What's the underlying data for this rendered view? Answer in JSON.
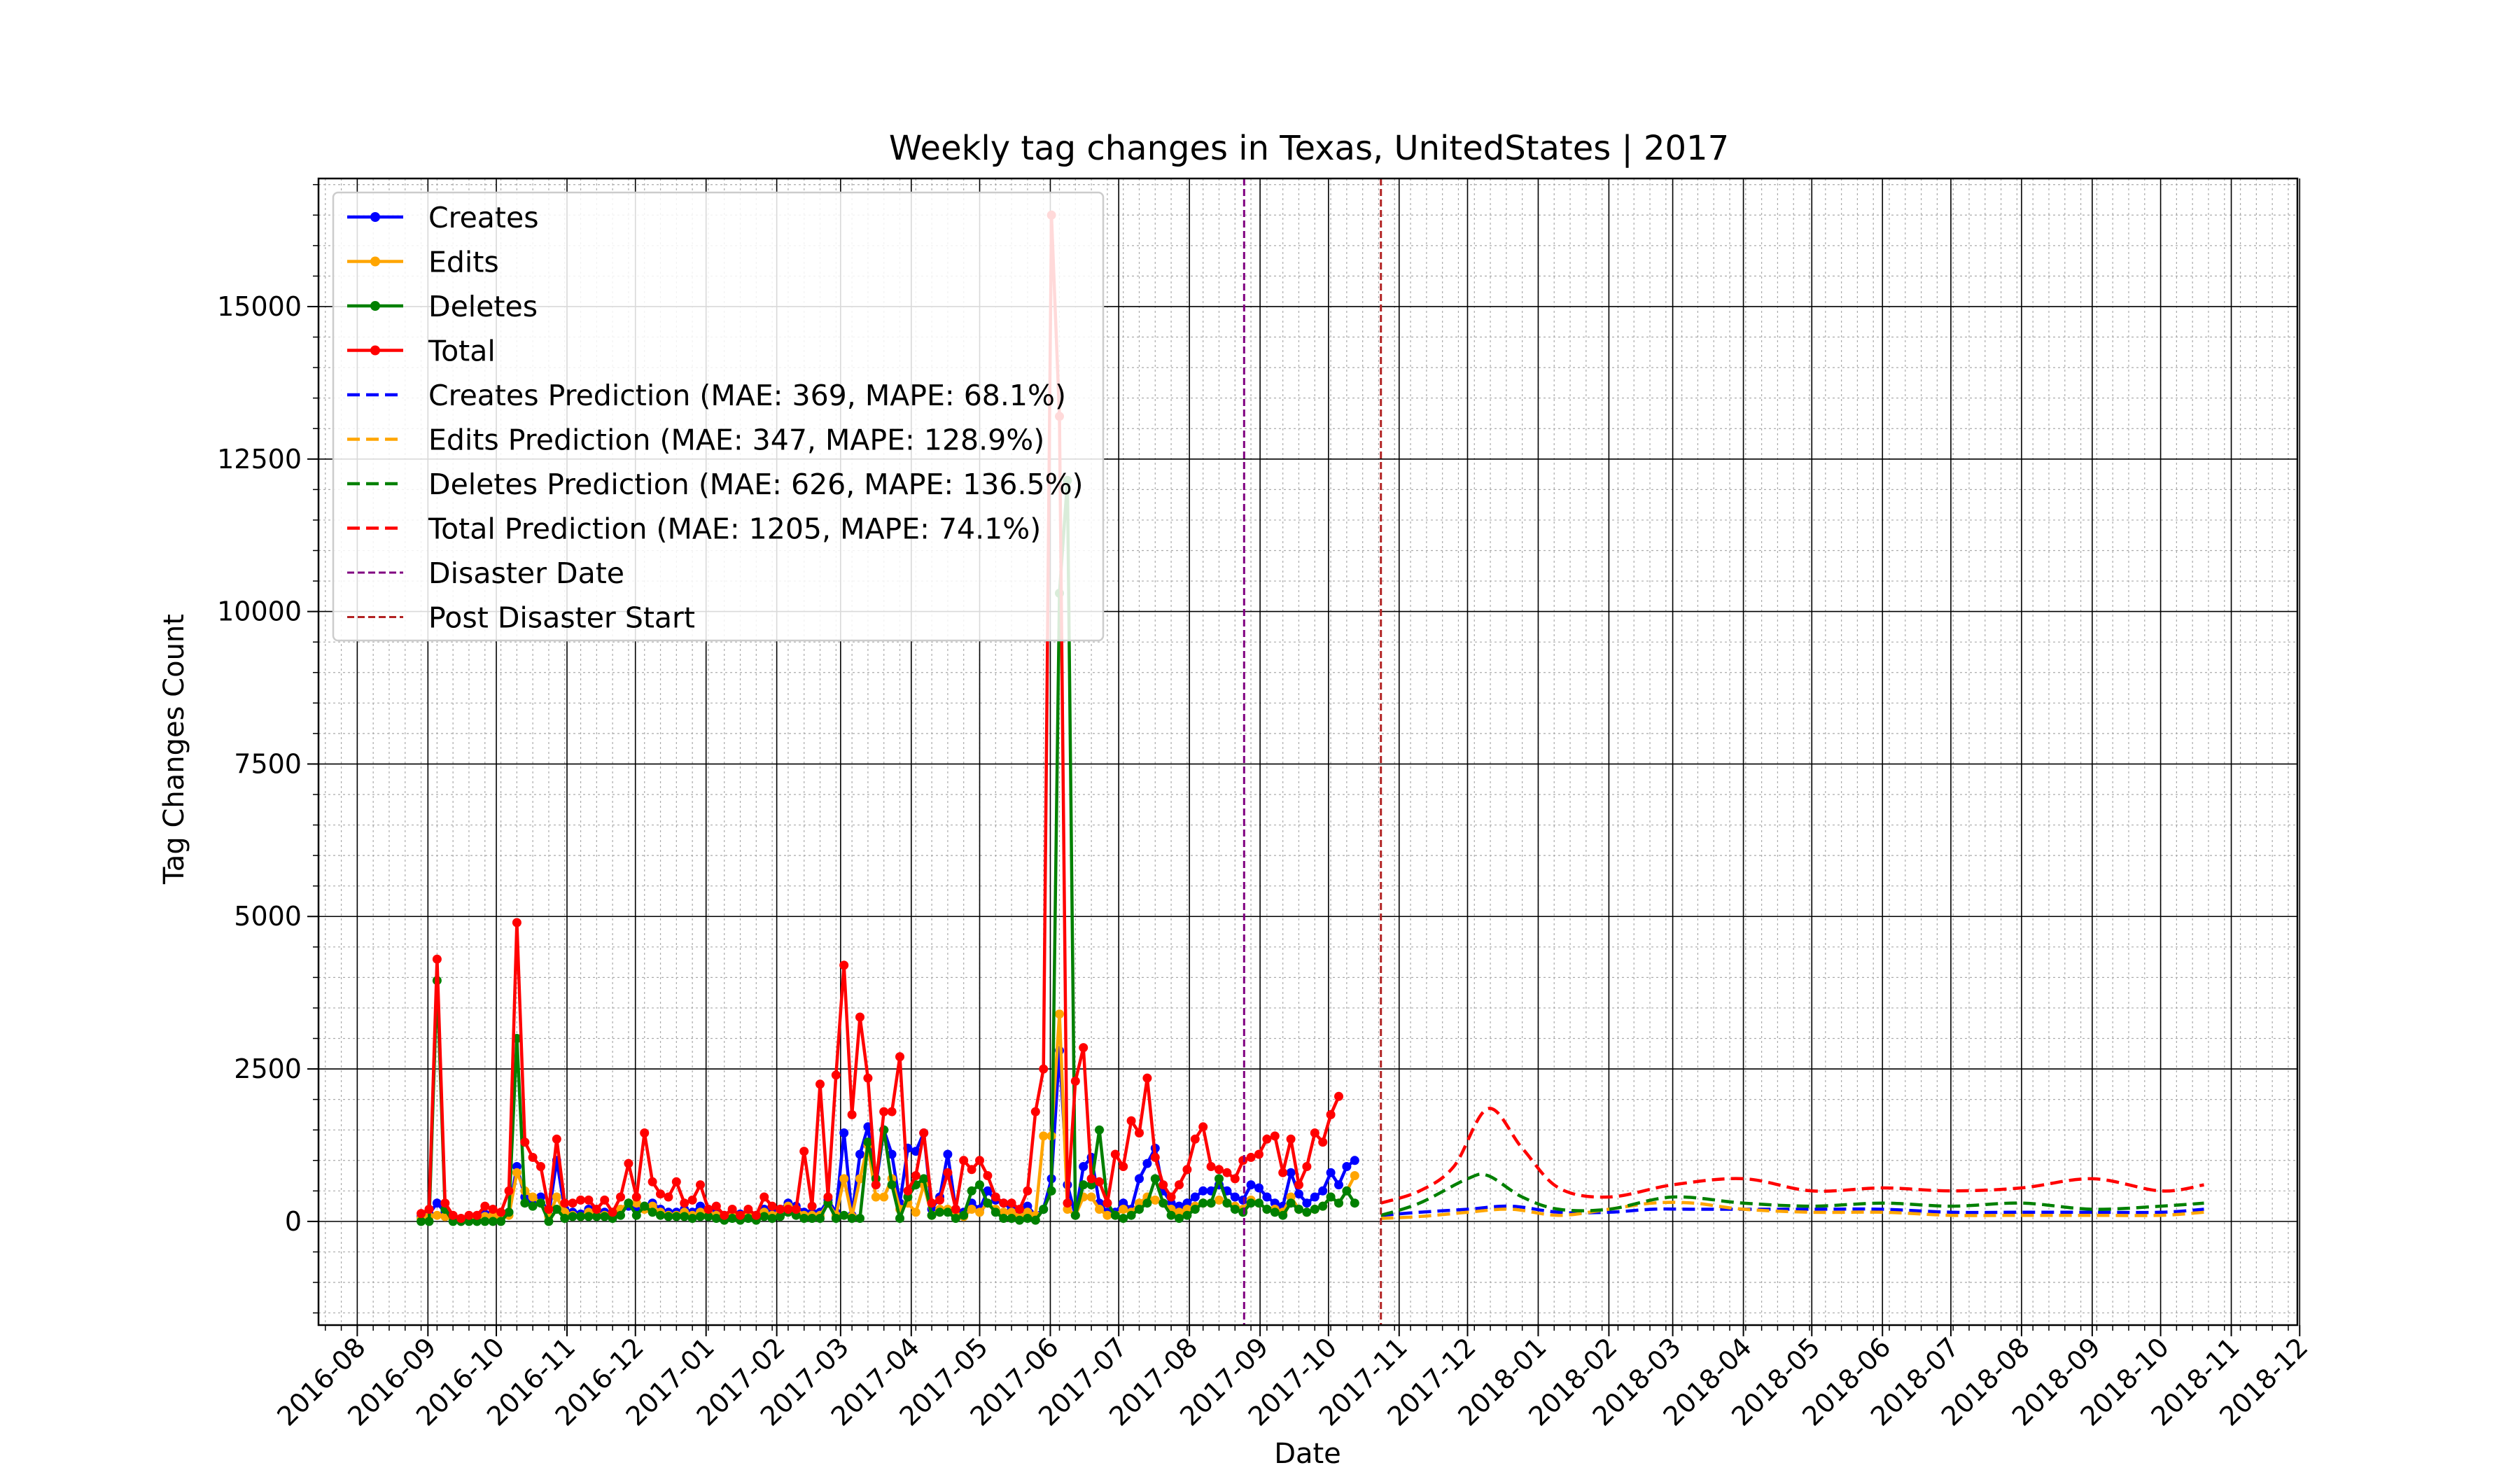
{
  "chart_data": {
    "type": "line",
    "title": "Weekly tag changes in Texas, UnitedStates | 2017",
    "xlabel": "Date",
    "ylabel": "Tag Changes Count",
    "xlim": [
      "2016-07-15",
      "2018-11-30"
    ],
    "ylim": [
      -1700,
      17100
    ],
    "grid": true,
    "legend_position": "top-left",
    "x_ticks": [
      "2016-08-01",
      "2016-09-01",
      "2016-10-01",
      "2016-11-01",
      "2016-12-01",
      "2017-01-01",
      "2017-02-01",
      "2017-03-01",
      "2017-04-01",
      "2017-05-01",
      "2017-06-01",
      "2017-07-01",
      "2017-08-01",
      "2017-09-01",
      "2017-10-01",
      "2017-11-01",
      "2017-12-01",
      "2018-01-01",
      "2018-02-01",
      "2018-03-01",
      "2018-04-01",
      "2018-05-01",
      "2018-06-01",
      "2018-07-01",
      "2018-08-01",
      "2018-09-01",
      "2018-10-01",
      "2018-11-01",
      "2018-12-01"
    ],
    "x_tick_labels": [
      "2016-08",
      "2016-09",
      "2016-10",
      "2016-11",
      "2016-12",
      "2017-01",
      "2017-02",
      "2017-03",
      "2017-04",
      "2017-05",
      "2017-06",
      "2017-07",
      "2017-08",
      "2017-09",
      "2017-10",
      "2017-11",
      "2017-12",
      "2018-01",
      "2018-02",
      "2018-03",
      "2018-04",
      "2018-05",
      "2018-06",
      "2018-07",
      "2018-08",
      "2018-09",
      "2018-10",
      "2018-11",
      "2018-12"
    ],
    "y_ticks": [
      0,
      2500,
      5000,
      7500,
      10000,
      12500,
      15000
    ],
    "y_tick_labels": [
      "0",
      "2500",
      "5000",
      "7500",
      "10000",
      "12500",
      "15000"
    ],
    "series": [
      {
        "name": "Creates",
        "color": "#0000ff",
        "style": "solid",
        "marker": true,
        "x_start": "2016-08-29",
        "x_step_days": 3.5,
        "values": [
          80,
          120,
          300,
          150,
          60,
          30,
          50,
          60,
          120,
          150,
          80,
          150,
          900,
          400,
          350,
          400,
          100,
          1000,
          200,
          150,
          120,
          200,
          150,
          150,
          100,
          200,
          250,
          200,
          250,
          300,
          200,
          150,
          150,
          200,
          150,
          250,
          200,
          150,
          100,
          150,
          120,
          150,
          100,
          200,
          150,
          200,
          300,
          250,
          150,
          150,
          150,
          350,
          150,
          1450,
          100,
          1100,
          1550,
          600,
          1500,
          1100,
          300,
          1200,
          1150,
          1450,
          200,
          400,
          1100,
          200,
          150,
          300,
          200,
          500,
          350,
          300,
          200,
          100,
          250,
          100,
          200,
          700,
          2800,
          600,
          100,
          900,
          1050,
          300,
          150,
          150,
          300,
          200,
          700,
          950,
          1200,
          500,
          300,
          250,
          300,
          400,
          500,
          500,
          600,
          500,
          400,
          350,
          600,
          550,
          400,
          300,
          250,
          800,
          450,
          300,
          400,
          500,
          800,
          600,
          900,
          1000
        ]
      },
      {
        "name": "Edits",
        "color": "#ffa500",
        "style": "solid",
        "marker": true,
        "x_start": "2016-08-29",
        "x_step_days": 3.5,
        "values": [
          50,
          80,
          100,
          80,
          40,
          20,
          40,
          40,
          80,
          100,
          60,
          100,
          800,
          500,
          400,
          300,
          80,
          400,
          150,
          100,
          80,
          150,
          100,
          100,
          80,
          200,
          300,
          300,
          200,
          250,
          150,
          100,
          100,
          150,
          100,
          150,
          150,
          100,
          80,
          100,
          80,
          100,
          80,
          150,
          100,
          150,
          250,
          200,
          100,
          100,
          100,
          300,
          100,
          700,
          80,
          700,
          1250,
          400,
          400,
          700,
          200,
          300,
          150,
          600,
          100,
          200,
          200,
          100,
          80,
          200,
          150,
          300,
          200,
          150,
          150,
          80,
          150,
          100,
          1400,
          1400,
          3400,
          200,
          100,
          400,
          400,
          200,
          100,
          100,
          200,
          150,
          300,
          400,
          350,
          300,
          200,
          150,
          200,
          250,
          300,
          300,
          350,
          300,
          250,
          200,
          350,
          300,
          200,
          200,
          150,
          400,
          200,
          150,
          200,
          250,
          400,
          300,
          500,
          750
        ]
      },
      {
        "name": "Deletes",
        "color": "#008000",
        "style": "solid",
        "marker": true,
        "x_start": "2016-08-29",
        "x_step_days": 3.5,
        "values": [
          0,
          0,
          3950,
          200,
          0,
          0,
          0,
          0,
          0,
          0,
          0,
          150,
          3000,
          300,
          250,
          300,
          0,
          200,
          50,
          80,
          80,
          80,
          80,
          80,
          50,
          100,
          300,
          100,
          250,
          150,
          100,
          80,
          80,
          80,
          50,
          80,
          80,
          50,
          20,
          50,
          20,
          50,
          20,
          80,
          50,
          80,
          150,
          100,
          50,
          50,
          50,
          300,
          50,
          100,
          50,
          50,
          1300,
          700,
          1500,
          600,
          50,
          400,
          600,
          700,
          100,
          150,
          150,
          50,
          100,
          500,
          600,
          300,
          150,
          50,
          50,
          20,
          50,
          20,
          200,
          500,
          10300,
          12150,
          100,
          600,
          600,
          1500,
          300,
          100,
          50,
          100,
          200,
          300,
          700,
          300,
          100,
          50,
          100,
          200,
          300,
          300,
          700,
          300,
          200,
          150,
          300,
          300,
          200,
          150,
          100,
          300,
          200,
          150,
          200,
          250,
          400,
          300,
          500,
          300
        ]
      },
      {
        "name": "Total",
        "color": "#ff0000",
        "style": "solid",
        "marker": true,
        "x_start": "2016-08-29",
        "x_step_days": 3.5,
        "values": [
          130,
          200,
          4300,
          300,
          100,
          50,
          100,
          100,
          250,
          200,
          150,
          500,
          4900,
          1300,
          1050,
          900,
          200,
          1350,
          300,
          300,
          350,
          350,
          200,
          350,
          150,
          400,
          950,
          400,
          1450,
          650,
          450,
          400,
          650,
          300,
          350,
          600,
          200,
          250,
          100,
          200,
          100,
          200,
          100,
          400,
          250,
          200,
          200,
          200,
          1150,
          250,
          2250,
          400,
          2400,
          4200,
          1750,
          3350,
          2350,
          600,
          1800,
          1800,
          2700,
          500,
          750,
          1450,
          300,
          350,
          800,
          200,
          1000,
          850,
          1000,
          750,
          400,
          300,
          300,
          200,
          500,
          1800,
          2500,
          16500,
          13200,
          300,
          2300,
          2850,
          700,
          650,
          300,
          1100,
          900,
          1650,
          1450,
          2350,
          1050,
          600,
          400,
          600,
          850,
          1350,
          1550,
          900,
          850,
          800,
          700,
          1000,
          1050,
          1100,
          1350,
          1400,
          800,
          1350,
          600,
          900,
          1450,
          1300,
          1750,
          2050
        ]
      },
      {
        "name": "Creates Prediction (MAE: 369, MAPE: 68.1%)",
        "color": "#0000ff",
        "style": "dashed",
        "marker": false,
        "x": [
          "2017-10-24",
          "2017-11-10",
          "2017-12-01",
          "2017-12-20",
          "2018-01-10",
          "2018-02-01",
          "2018-02-20",
          "2018-03-10",
          "2018-04-01",
          "2018-05-01",
          "2018-06-01",
          "2018-07-01",
          "2018-08-01",
          "2018-09-01",
          "2018-10-01",
          "2018-10-20"
        ],
        "values": [
          100,
          150,
          200,
          250,
          150,
          150,
          200,
          200,
          200,
          200,
          200,
          150,
          150,
          150,
          150,
          200
        ]
      },
      {
        "name": "Edits Prediction (MAE: 347, MAPE: 128.9%)",
        "color": "#ffa500",
        "style": "dashed",
        "marker": false,
        "x": [
          "2017-10-24",
          "2017-11-10",
          "2017-12-01",
          "2017-12-20",
          "2018-01-10",
          "2018-02-01",
          "2018-02-20",
          "2018-03-10",
          "2018-04-01",
          "2018-05-01",
          "2018-06-01",
          "2018-07-01",
          "2018-08-01",
          "2018-09-01",
          "2018-10-01",
          "2018-10-20"
        ],
        "values": [
          50,
          80,
          150,
          200,
          100,
          200,
          300,
          300,
          200,
          150,
          150,
          100,
          100,
          100,
          100,
          150
        ]
      },
      {
        "name": "Deletes Prediction (MAE: 626, MAPE: 136.5%)",
        "color": "#008000",
        "style": "dashed",
        "marker": false,
        "x": [
          "2017-10-24",
          "2017-11-10",
          "2017-12-01",
          "2017-12-10",
          "2017-12-25",
          "2018-01-10",
          "2018-02-01",
          "2018-03-01",
          "2018-04-01",
          "2018-05-01",
          "2018-06-01",
          "2018-07-01",
          "2018-08-01",
          "2018-09-01",
          "2018-10-01",
          "2018-10-20"
        ],
        "values": [
          100,
          300,
          700,
          750,
          400,
          200,
          200,
          400,
          300,
          250,
          300,
          250,
          300,
          200,
          250,
          300
        ]
      },
      {
        "name": "Total Prediction (MAE: 1205, MAPE: 74.1%)",
        "color": "#ff0000",
        "style": "dashed",
        "marker": false,
        "x": [
          "2017-10-24",
          "2017-11-10",
          "2017-11-25",
          "2017-12-10",
          "2017-12-25",
          "2018-01-10",
          "2018-02-01",
          "2018-03-01",
          "2018-04-01",
          "2018-05-01",
          "2018-06-01",
          "2018-07-01",
          "2018-08-01",
          "2018-09-01",
          "2018-10-01",
          "2018-10-20"
        ],
        "values": [
          300,
          500,
          900,
          1850,
          1200,
          550,
          400,
          600,
          700,
          500,
          550,
          500,
          550,
          700,
          500,
          600
        ]
      }
    ],
    "vlines": [
      {
        "name": "Disaster Date",
        "x": "2017-08-25",
        "color": "#800080",
        "style": "dashed"
      },
      {
        "name": "Post Disaster Start",
        "x": "2017-10-24",
        "color": "#b22222",
        "style": "dashed"
      }
    ]
  }
}
